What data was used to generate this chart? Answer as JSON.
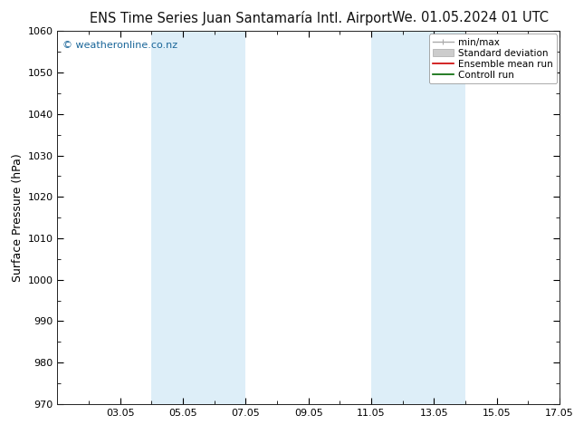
{
  "title_left": "ENS Time Series Juan Santamaría Intl. Airport",
  "title_right": "We. 01.05.2024 01 UTC",
  "ylabel": "Surface Pressure (hPa)",
  "ylim": [
    970,
    1060
  ],
  "yticks": [
    970,
    980,
    990,
    1000,
    1010,
    1020,
    1030,
    1040,
    1050,
    1060
  ],
  "xlim": [
    0,
    384
  ],
  "xtick_labels": [
    "03.05",
    "05.05",
    "07.05",
    "09.05",
    "11.05",
    "13.05",
    "15.05",
    "17.05"
  ],
  "xtick_positions": [
    48,
    96,
    144,
    192,
    240,
    288,
    336,
    384
  ],
  "shaded_bands": [
    {
      "start": 72,
      "end": 144
    },
    {
      "start": 240,
      "end": 312
    }
  ],
  "band_color": "#ddeef8",
  "background_color": "#ffffff",
  "watermark": "© weatheronline.co.nz",
  "watermark_color": "#1a6699",
  "legend_items": [
    {
      "label": "min/max",
      "color": "#aaaaaa",
      "lw": 1.0
    },
    {
      "label": "Standard deviation",
      "color": "#cccccc",
      "lw": 6
    },
    {
      "label": "Ensemble mean run",
      "color": "#cc0000",
      "lw": 1.2
    },
    {
      "label": "Controll run",
      "color": "#006600",
      "lw": 1.2
    }
  ],
  "title_fontsize": 10.5,
  "ylabel_fontsize": 9,
  "tick_fontsize": 8,
  "legend_fontsize": 7.5,
  "watermark_fontsize": 8
}
